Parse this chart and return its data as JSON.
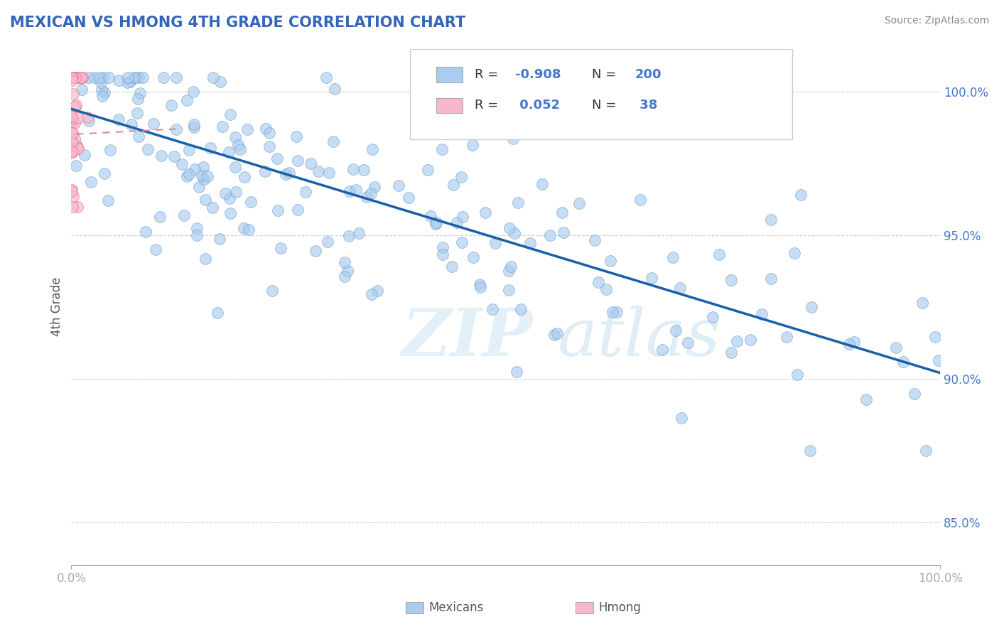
{
  "title": "MEXICAN VS HMONG 4TH GRADE CORRELATION CHART",
  "source_text": "Source: ZipAtlas.com",
  "ylabel": "4th Grade",
  "xlim": [
    0.0,
    1.0
  ],
  "ylim": [
    0.835,
    1.015
  ],
  "yticks": [
    0.85,
    0.9,
    0.95,
    1.0
  ],
  "ytick_labels": [
    "85.0%",
    "90.0%",
    "95.0%",
    "100.0%"
  ],
  "xtick_labels": [
    "0.0%",
    "100.0%"
  ],
  "blue_color": "#aaccee",
  "blue_edge": "#6699cc",
  "blue_line": "#1a5faa",
  "pink_color": "#f8b8cc",
  "pink_edge": "#dd6688",
  "pink_line": "#dd8899",
  "watermark_zip": "ZIP",
  "watermark_atlas": "atlas",
  "title_color": "#3366bb",
  "source_color": "#888888",
  "axis_label_color": "#555555",
  "tick_color": "#4477cc",
  "grid_color": "#cccccc",
  "legend_color": "#333333",
  "legend_num_color": "#4477cc",
  "mex_trendline_x0": 0.0,
  "mex_trendline_y0": 0.994,
  "mex_trendline_x1": 1.0,
  "mex_trendline_y1": 0.902,
  "hmong_trendline_x0": 0.0,
  "hmong_trendline_y0": 0.985,
  "hmong_trendline_x1": 0.12,
  "hmong_trendline_y1": 0.987
}
